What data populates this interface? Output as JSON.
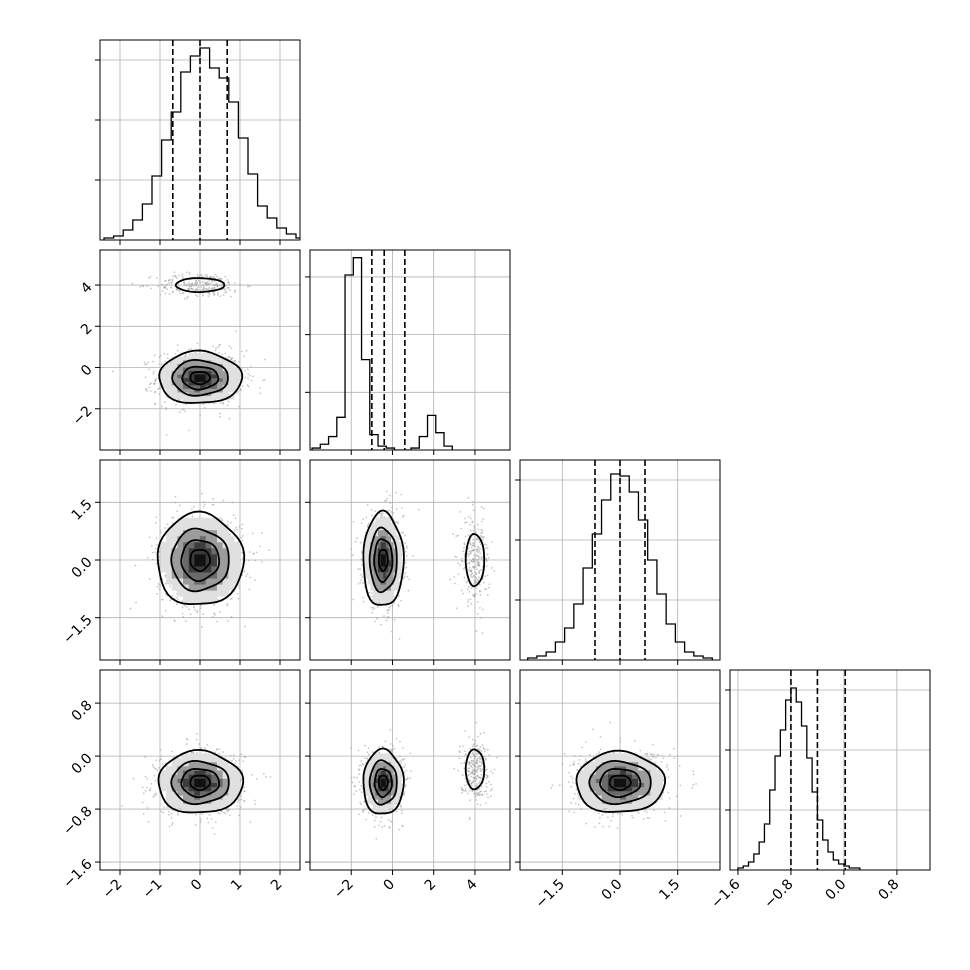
{
  "chart_data": {
    "type": "corner",
    "parameters": [
      {
        "xlim": [
          -2.5,
          2.5
        ],
        "xticks": [
          {
            "v": -2,
            "t": "−2"
          },
          {
            "v": -1,
            "t": "−1"
          },
          {
            "v": 0,
            "t": "0"
          },
          {
            "v": 1,
            "t": "1"
          },
          {
            "v": 2,
            "t": "2"
          }
        ],
        "quantiles": [
          -0.68,
          0.0,
          0.68
        ],
        "hist": {
          "edges_start": -2.4,
          "bin_width": 0.24,
          "counts": [
            1,
            2,
            5,
            10,
            18,
            32,
            50,
            64,
            84,
            92,
            96,
            86,
            81,
            69,
            51,
            33,
            17,
            11,
            6,
            3,
            1
          ],
          "ymax": 100
        }
      },
      {
        "xlim": [
          -4.0,
          5.7
        ],
        "xticks": [
          {
            "v": -2,
            "t": "−2"
          },
          {
            "v": 0,
            "t": "0"
          },
          {
            "v": 2,
            "t": "2"
          },
          {
            "v": 4,
            "t": "4"
          }
        ],
        "yticks": [
          {
            "v": 4,
            "t": "4"
          },
          {
            "v": 2,
            "t": "2"
          },
          {
            "v": 0,
            "t": "0"
          },
          {
            "v": -2,
            "t": "−2"
          }
        ],
        "quantiles": [
          -1.0,
          -0.4,
          0.6
        ],
        "hist": {
          "edges_start": -3.9,
          "bin_width": 0.4,
          "counts": [
            1,
            3,
            7,
            17,
            91,
            100,
            47,
            8,
            2,
            1,
            0,
            0,
            1,
            7,
            18,
            9,
            2
          ],
          "ymax": 104
        }
      },
      {
        "xlim": [
          -2.6,
          2.6
        ],
        "xticks": [
          {
            "v": -1.5,
            "t": "−1.5"
          },
          {
            "v": 0,
            "t": "0.0"
          },
          {
            "v": 1.5,
            "t": "1.5"
          }
        ],
        "yticks": [
          {
            "v": 1.5,
            "t": "1.5"
          },
          {
            "v": 0,
            "t": "0.0"
          },
          {
            "v": -1.5,
            "t": "−1.5"
          }
        ],
        "quantiles": [
          -0.65,
          0.0,
          0.65
        ],
        "hist": {
          "edges_start": -2.4,
          "bin_width": 0.24,
          "counts": [
            1,
            2,
            4,
            9,
            16,
            28,
            46,
            63,
            80,
            93,
            92,
            84,
            70,
            50,
            33,
            18,
            9,
            4,
            2,
            1
          ],
          "ymax": 100
        }
      },
      {
        "xlim": [
          -1.72,
          1.3
        ],
        "xticks": [
          {
            "v": -1.6,
            "t": "−1.6"
          },
          {
            "v": -0.8,
            "t": "−0.8"
          },
          {
            "v": 0,
            "t": "0.0"
          },
          {
            "v": 0.8,
            "t": "0.8"
          }
        ],
        "yticks": [
          {
            "v": 0.8,
            "t": "0.8"
          },
          {
            "v": 0,
            "t": "0.0"
          },
          {
            "v": -0.8,
            "t": "−0.8"
          },
          {
            "v": -1.6,
            "t": "−1.6"
          }
        ],
        "quantiles": [
          -0.8,
          -0.4,
          0.02
        ],
        "hist": {
          "edges_start": -1.6,
          "bin_width": 0.08,
          "counts": [
            1,
            2,
            4,
            8,
            14,
            23,
            40,
            57,
            70,
            85,
            91,
            84,
            72,
            56,
            39,
            25,
            15,
            9,
            5,
            3,
            2,
            1,
            1
          ],
          "ymax": 100
        }
      }
    ],
    "pairs": [
      {
        "col": 0,
        "row": 1,
        "clusters": [
          {
            "cx": 0.0,
            "cy": -0.5,
            "sx": 0.45,
            "sy": 0.55,
            "levels": [
              0.55,
              1.0,
              1.55,
              2.3
            ],
            "peak": true
          },
          {
            "cx": 0.0,
            "cy": 4.0,
            "sx": 0.45,
            "sy": 0.25,
            "levels": [
              1.35
            ]
          }
        ]
      },
      {
        "col": 0,
        "row": 2,
        "clusters": [
          {
            "cx": 0.0,
            "cy": 0.0,
            "sx": 0.45,
            "sy": 0.5,
            "levels": [
              0.55,
              1.05,
              1.6,
              2.4
            ],
            "peak": true
          }
        ]
      },
      {
        "col": 1,
        "row": 2,
        "clusters": [
          {
            "cx": -0.45,
            "cy": 0.0,
            "sx": 0.4,
            "sy": 0.5,
            "levels": [
              0.55,
              1.1,
              1.65,
              2.45
            ],
            "peak": true
          },
          {
            "cx": 4.0,
            "cy": 0.0,
            "sx": 0.3,
            "sy": 0.45,
            "levels": [
              1.5
            ]
          }
        ]
      },
      {
        "col": 0,
        "row": 3,
        "clusters": [
          {
            "cx": 0.0,
            "cy": -0.4,
            "sx": 0.45,
            "sy": 0.2,
            "levels": [
              0.55,
              1.05,
              1.6,
              2.35
            ],
            "peak": true
          }
        ]
      },
      {
        "col": 1,
        "row": 3,
        "clusters": [
          {
            "cx": -0.45,
            "cy": -0.4,
            "sx": 0.4,
            "sy": 0.2,
            "levels": [
              0.55,
              1.05,
              1.65,
              2.45
            ],
            "peak": true
          },
          {
            "cx": 4.0,
            "cy": -0.2,
            "sx": 0.3,
            "sy": 0.2,
            "levels": [
              1.5
            ]
          }
        ]
      },
      {
        "col": 2,
        "row": 3,
        "clusters": [
          {
            "cx": 0.0,
            "cy": -0.4,
            "sx": 0.5,
            "sy": 0.2,
            "levels": [
              0.55,
              1.05,
              1.6,
              2.3
            ],
            "peak": true
          }
        ]
      }
    ],
    "grid": true
  }
}
